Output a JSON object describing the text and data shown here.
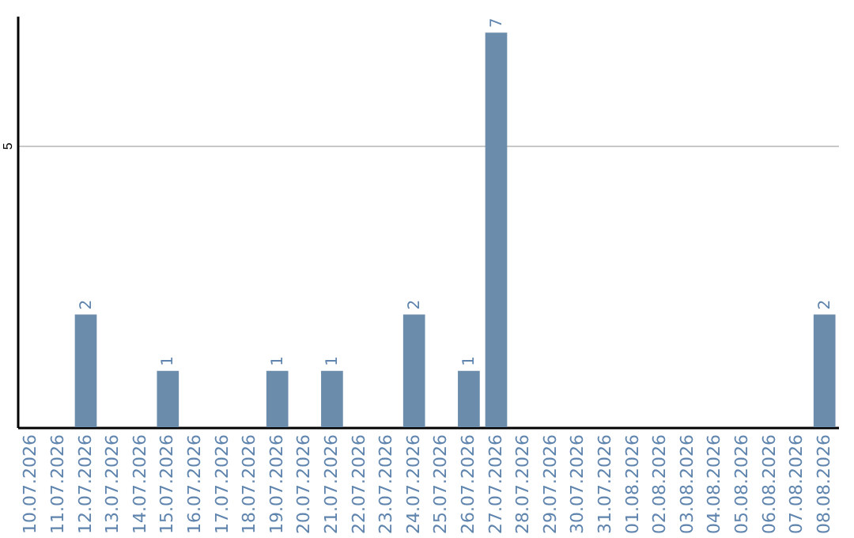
{
  "chart_data": {
    "type": "bar",
    "categories": [
      "10.07.2026",
      "11.07.2026",
      "12.07.2026",
      "13.07.2026",
      "14.07.2026",
      "15.07.2026",
      "16.07.2026",
      "17.07.2026",
      "18.07.2026",
      "19.07.2026",
      "20.07.2026",
      "21.07.2026",
      "22.07.2026",
      "23.07.2026",
      "24.07.2026",
      "25.07.2026",
      "26.07.2026",
      "27.07.2026",
      "28.07.2026",
      "29.07.2026",
      "30.07.2026",
      "31.07.2026",
      "01.08.2026",
      "02.08.2026",
      "03.08.2026",
      "04.08.2026",
      "05.08.2026",
      "06.08.2026",
      "07.08.2026",
      "08.08.2026"
    ],
    "values": [
      0,
      0,
      2,
      0,
      0,
      1,
      0,
      0,
      0,
      1,
      0,
      1,
      0,
      0,
      2,
      0,
      1,
      7,
      0,
      0,
      0,
      0,
      0,
      0,
      0,
      0,
      0,
      0,
      0,
      2
    ],
    "value_labels": [
      null,
      null,
      "2",
      null,
      null,
      "1",
      null,
      null,
      null,
      "1",
      null,
      "1",
      null,
      null,
      "2",
      null,
      "1",
      "7",
      null,
      null,
      null,
      null,
      null,
      null,
      null,
      null,
      null,
      null,
      null,
      "2"
    ],
    "color": "#6b8cab",
    "ylim": [
      0,
      7.3
    ],
    "yticks": [
      5
    ],
    "grid": "y"
  }
}
